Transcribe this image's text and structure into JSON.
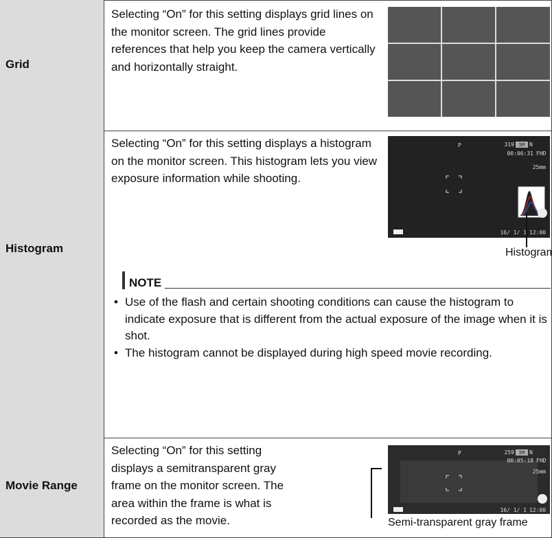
{
  "table": {
    "rows": [
      {
        "label": "Grid",
        "description": "Selecting “On” for this setting displays grid lines on the monitor screen. The grid lines provide references that help you keep the camera vertically and horizontally straight."
      },
      {
        "label": "Histogram",
        "description": "Selecting “On” for this setting displays a histogram on the monitor screen. This histogram lets you view exposure information while shooting.",
        "screen": {
          "mode": "P",
          "shots": "319",
          "size": "5M",
          "quality": "N",
          "time": "00:06:31",
          "movie": "FHD",
          "zoom": "25mm",
          "date": "16/ 1/ 1",
          "clock": "12:00"
        },
        "caption": "Histogram",
        "note": {
          "title": "NOTE",
          "items": [
            "Use of the flash and certain shooting conditions can cause the histogram to indicate exposure that is different from the actual exposure of the image when it is shot.",
            "The histogram cannot be displayed during high speed movie recording."
          ]
        }
      },
      {
        "label": "Movie Range",
        "description": "Selecting “On” for this setting displays a semitransparent gray frame on the monitor screen. The area within the frame is what is recorded as the movie.",
        "screen": {
          "mode": "P",
          "shots": "259",
          "size": "5M",
          "quality": "N",
          "time": "00:05:18",
          "movie": "FHD",
          "zoom": "25mm",
          "date": "16/ 1/ 1",
          "clock": "12:00"
        },
        "caption": "Semi-transparent gray frame"
      }
    ]
  }
}
